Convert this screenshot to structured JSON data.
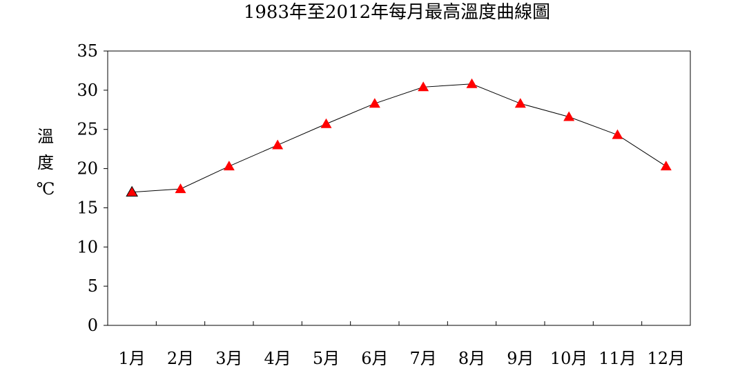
{
  "chart_data": {
    "type": "line",
    "title": "1983年至2012年每月最高溫度曲線圖",
    "xlabel": "",
    "ylabel": "溫度℃",
    "categories": [
      "1月",
      "2月",
      "3月",
      "4月",
      "5月",
      "6月",
      "7月",
      "8月",
      "9月",
      "10月",
      "11月",
      "12月"
    ],
    "series": [
      {
        "values": [
          17.0,
          17.4,
          20.3,
          23.0,
          25.7,
          28.3,
          30.4,
          30.8,
          28.3,
          26.6,
          24.3,
          20.3
        ]
      }
    ],
    "ylim": [
      0,
      35
    ],
    "yticks": [
      0,
      5,
      10,
      15,
      20,
      25,
      30,
      35
    ],
    "grid": false,
    "legend": "none",
    "colors": {
      "marker": "#ff0000",
      "marker_edge_first": "#000000",
      "line": "#000000",
      "axis": "#000000"
    }
  }
}
